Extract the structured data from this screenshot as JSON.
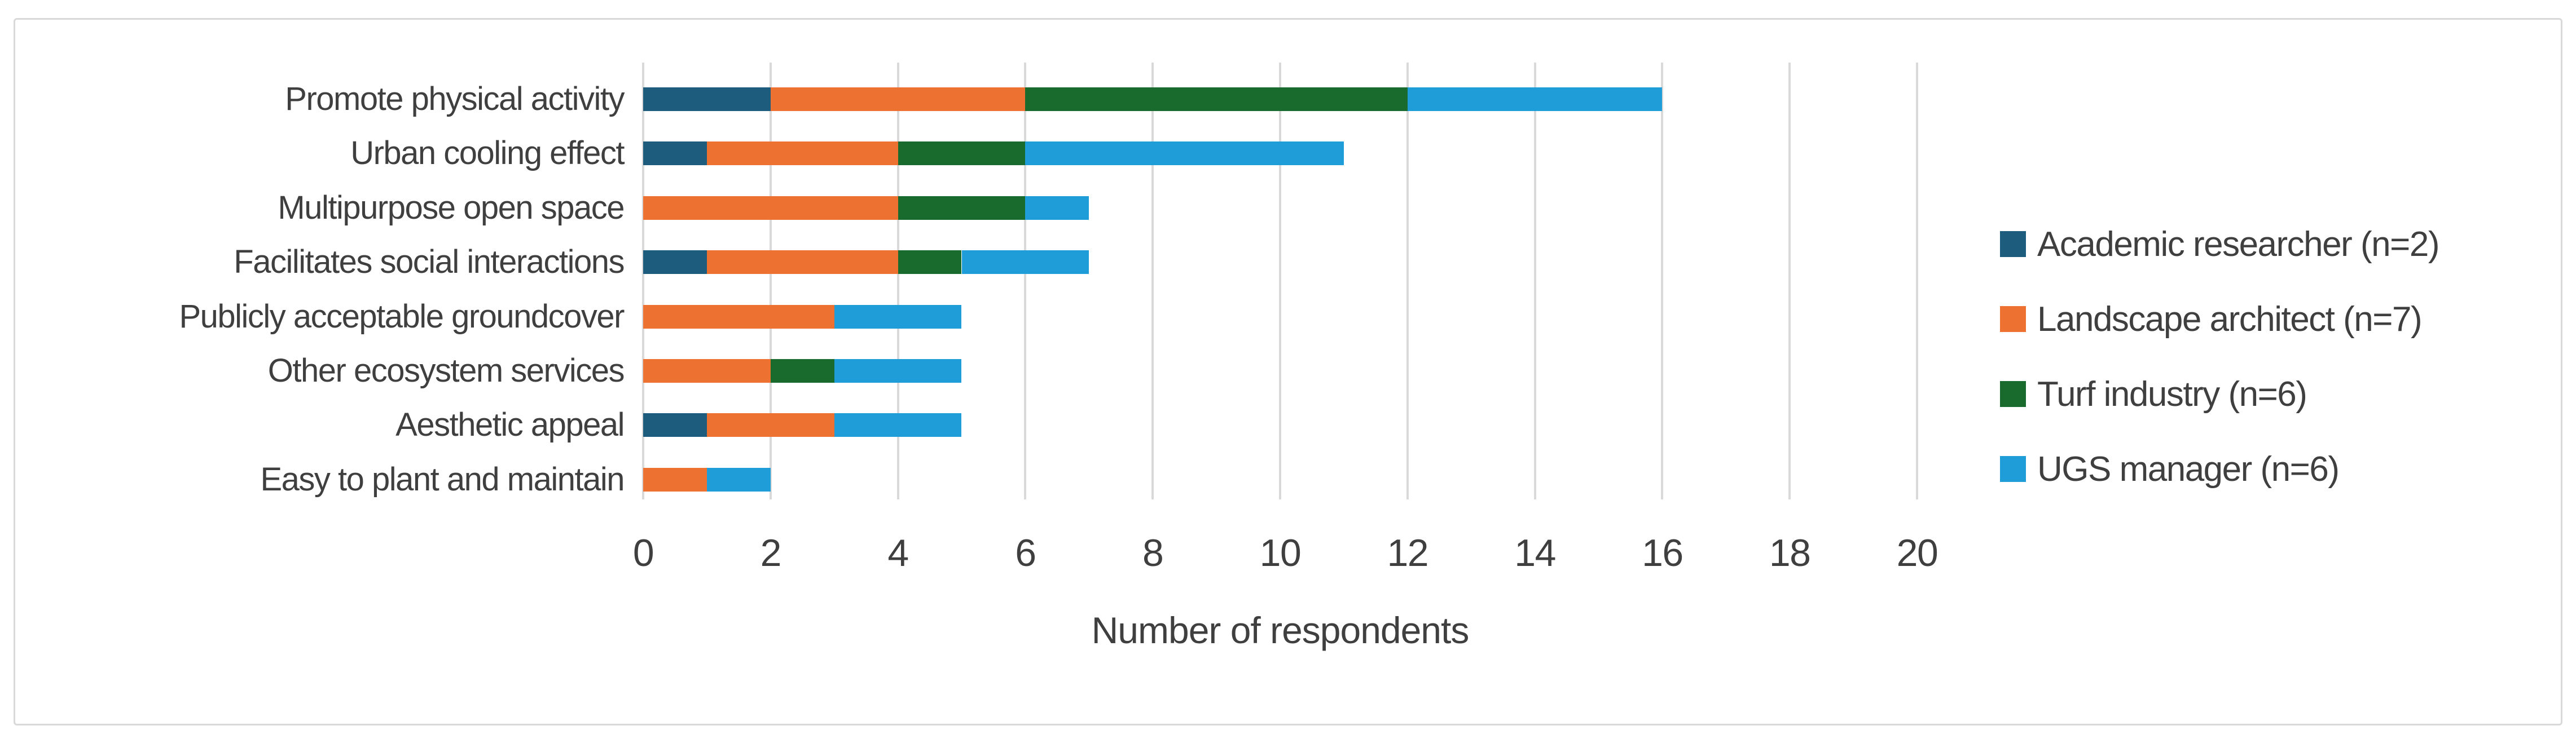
{
  "chart_data": {
    "type": "bar",
    "orientation": "horizontal_stacked",
    "xlabel": "Number of respondents",
    "categories": [
      "Promote physical activity",
      "Urban cooling effect",
      "Multipurpose open space",
      "Facilitates social interactions",
      "Publicly acceptable groundcover",
      "Other ecosystem services",
      "Aesthetic appeal",
      "Easy to plant and maintain"
    ],
    "series": [
      {
        "name": "Academic researcher (n=2)",
        "color": "#1E5C7D",
        "values": [
          2,
          1,
          0,
          1,
          0,
          0,
          1,
          0
        ]
      },
      {
        "name": "Landscape architect (n=7)",
        "color": "#ED7231",
        "values": [
          4,
          3,
          4,
          3,
          3,
          2,
          2,
          1
        ]
      },
      {
        "name": "Turf industry (n=6)",
        "color": "#186B2C",
        "values": [
          6,
          2,
          2,
          1,
          0,
          1,
          0,
          0
        ]
      },
      {
        "name": "UGS manager (n=6)",
        "color": "#1E9DD9",
        "values": [
          4,
          5,
          1,
          2,
          2,
          2,
          2,
          1
        ]
      }
    ],
    "totals": [
      16,
      11,
      7,
      7,
      5,
      5,
      5,
      2
    ],
    "xlim": [
      0,
      20
    ],
    "xticks": [
      0,
      2,
      4,
      6,
      8,
      10,
      12,
      14,
      16,
      18,
      20
    ],
    "grid": "vertical",
    "legend_position": "right"
  },
  "colors": {
    "background": "#FFFFFF",
    "frame_border": "#D9D9D9",
    "gridline": "#D9D9D9",
    "text": "#3F3F3F"
  }
}
